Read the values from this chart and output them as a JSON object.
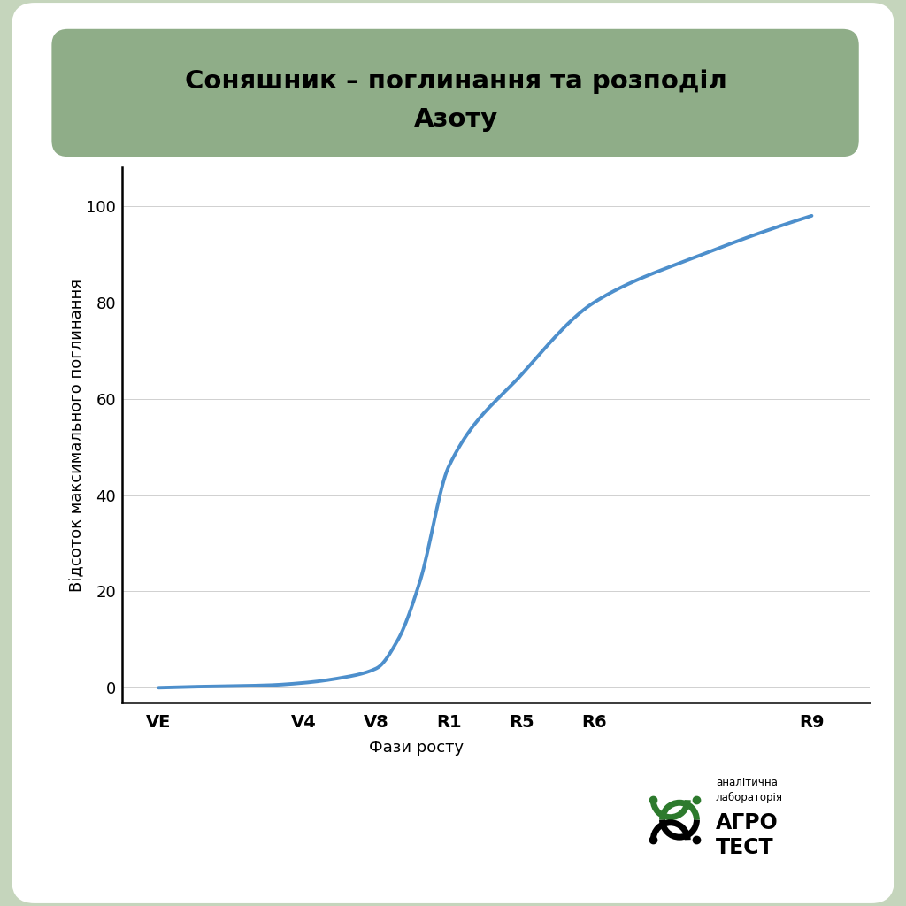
{
  "title_line1": "Соняшник – поглинання та розподіл",
  "title_line2": "Азоту",
  "title_bg_color": "#8fad88",
  "outer_bg_color": "#c5d5bc",
  "inner_bg_color": "#ffffff",
  "ylabel": "Відсоток максимального поглинання",
  "xlabel": "Фази росту",
  "x_labels": [
    "VE",
    "V4",
    "V8",
    "R1",
    "R5",
    "R6",
    "R9"
  ],
  "x_positions": [
    0,
    2,
    3,
    4,
    5,
    6,
    9
  ],
  "y_ticks": [
    0,
    20,
    40,
    60,
    80,
    100
  ],
  "curve_x": [
    0,
    0.5,
    1.5,
    2.0,
    2.5,
    3.0,
    3.3,
    3.6,
    4.0,
    5.0,
    6.0,
    7.5,
    9.0
  ],
  "curve_y": [
    0,
    0.2,
    0.5,
    1.0,
    2.0,
    4.0,
    10.0,
    22.0,
    46.0,
    65.0,
    80.0,
    90.0,
    98.0
  ],
  "line_color": "#4d8fcc",
  "line_width": 2.8,
  "ylim": [
    -3,
    108
  ],
  "xlim": [
    -0.5,
    9.8
  ]
}
